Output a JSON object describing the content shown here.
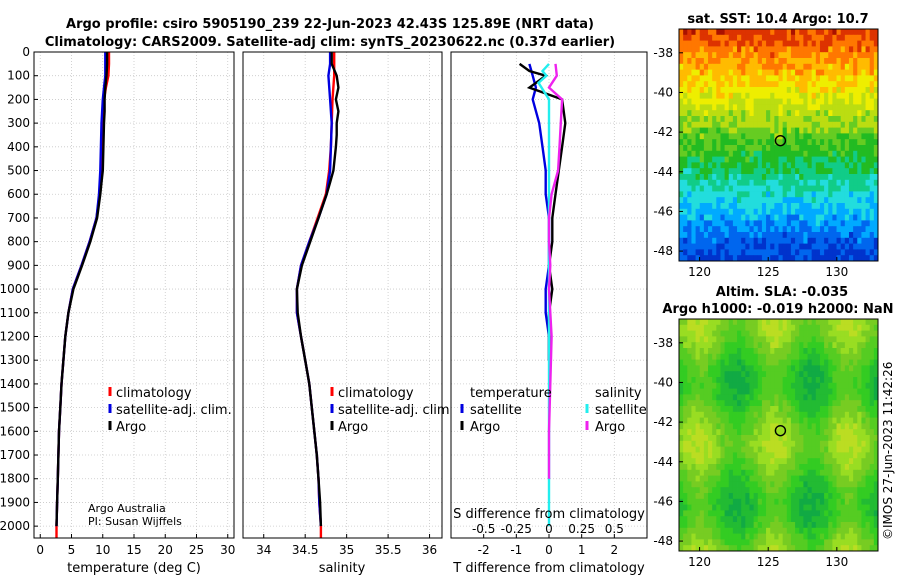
{
  "title": {
    "line1": "Argo profile: csiro 5905190_239 22-Jun-2023 42.43S 125.89E (NRT data)",
    "line2": "Climatology: CARS2009. Satellite-adj clim: synTS_20230622.nc (0.37d earlier)"
  },
  "colors": {
    "climatology": "#ff0000",
    "satellite": "#0000e0",
    "argo": "#000000",
    "sat_cyan": "#22eeee",
    "argo_magenta": "#ee22ee",
    "grid": "#c8c8c8"
  },
  "chart_data": [
    {
      "type": "line",
      "id": "temperature",
      "xlabel": "temperature (deg C)",
      "xlim": [
        -1,
        31
      ],
      "xticks": [
        0,
        5,
        10,
        15,
        20,
        25,
        30
      ],
      "ylim": [
        0,
        2050
      ],
      "yticks": [
        0,
        100,
        200,
        300,
        400,
        500,
        600,
        700,
        800,
        900,
        1000,
        1100,
        1200,
        1300,
        1400,
        1500,
        1600,
        1700,
        1800,
        1900,
        2000
      ],
      "legend": [
        "climatology",
        "satellite-adj. clim.",
        "Argo"
      ],
      "annotation": [
        "Argo Australia",
        "PI: Susan Wijffels"
      ],
      "series": [
        {
          "name": "climatology",
          "color": "#ff0000",
          "points": [
            [
              11.0,
              0
            ],
            [
              11.0,
              50
            ],
            [
              10.9,
              100
            ],
            [
              10.5,
              150
            ],
            [
              10.2,
              200
            ],
            [
              10.0,
              300
            ],
            [
              9.9,
              400
            ],
            [
              9.7,
              500
            ],
            [
              9.5,
              600
            ],
            [
              9.0,
              700
            ],
            [
              7.9,
              800
            ],
            [
              6.6,
              900
            ],
            [
              5.2,
              1000
            ],
            [
              4.5,
              1100
            ],
            [
              4.0,
              1200
            ],
            [
              3.7,
              1300
            ],
            [
              3.4,
              1400
            ],
            [
              3.2,
              1500
            ],
            [
              3.0,
              1600
            ],
            [
              2.9,
              1700
            ],
            [
              2.8,
              1800
            ],
            [
              2.7,
              1900
            ],
            [
              2.6,
              2000
            ],
            [
              2.6,
              2050
            ]
          ]
        },
        {
          "name": "satellite-adj. clim.",
          "color": "#0000e0",
          "points": [
            [
              10.4,
              0
            ],
            [
              10.4,
              50
            ],
            [
              10.4,
              100
            ],
            [
              10.2,
              150
            ],
            [
              10.0,
              200
            ],
            [
              9.8,
              300
            ],
            [
              9.7,
              400
            ],
            [
              9.6,
              500
            ],
            [
              9.4,
              600
            ],
            [
              9.0,
              700
            ],
            [
              7.9,
              800
            ],
            [
              6.6,
              900
            ],
            [
              5.2,
              1000
            ],
            [
              4.5,
              1100
            ],
            [
              4.0,
              1200
            ],
            [
              3.7,
              1300
            ],
            [
              3.4,
              1400
            ],
            [
              3.2,
              1500
            ],
            [
              3.0,
              1600
            ],
            [
              2.9,
              1700
            ],
            [
              2.8,
              1800
            ],
            [
              2.7,
              1900
            ],
            [
              2.6,
              2000
            ]
          ]
        },
        {
          "name": "Argo",
          "color": "#000000",
          "points": [
            [
              10.7,
              0
            ],
            [
              10.7,
              50
            ],
            [
              10.6,
              100
            ],
            [
              10.4,
              150
            ],
            [
              10.3,
              200
            ],
            [
              10.3,
              250
            ],
            [
              10.2,
              300
            ],
            [
              10.1,
              400
            ],
            [
              10.0,
              500
            ],
            [
              9.8,
              550
            ],
            [
              9.6,
              600
            ],
            [
              9.1,
              700
            ],
            [
              8.0,
              800
            ],
            [
              6.7,
              900
            ],
            [
              5.3,
              1000
            ],
            [
              4.5,
              1100
            ],
            [
              4.0,
              1200
            ],
            [
              3.7,
              1300
            ],
            [
              3.4,
              1400
            ],
            [
              3.2,
              1500
            ],
            [
              3.0,
              1600
            ],
            [
              2.9,
              1700
            ],
            [
              2.8,
              1800
            ],
            [
              2.7,
              1900
            ],
            [
              2.6,
              2000
            ]
          ]
        }
      ]
    },
    {
      "type": "line",
      "id": "salinity",
      "xlabel": "salinity",
      "xlim": [
        33.75,
        36.15
      ],
      "xticks": [
        34,
        34.5,
        35,
        35.5,
        36
      ],
      "ylim": [
        0,
        2050
      ],
      "legend": [
        "climatology",
        "satellite-adj. clim.",
        "Argo"
      ],
      "series": [
        {
          "name": "climatology",
          "color": "#ff0000",
          "points": [
            [
              34.85,
              0
            ],
            [
              34.85,
              100
            ],
            [
              34.83,
              200
            ],
            [
              34.82,
              300
            ],
            [
              34.81,
              400
            ],
            [
              34.79,
              500
            ],
            [
              34.75,
              600
            ],
            [
              34.65,
              700
            ],
            [
              34.55,
              800
            ],
            [
              34.45,
              900
            ],
            [
              34.4,
              1000
            ],
            [
              34.4,
              1100
            ],
            [
              34.45,
              1200
            ],
            [
              34.5,
              1300
            ],
            [
              34.55,
              1400
            ],
            [
              34.58,
              1500
            ],
            [
              34.61,
              1600
            ],
            [
              34.64,
              1700
            ],
            [
              34.66,
              1800
            ],
            [
              34.67,
              1900
            ],
            [
              34.69,
              2000
            ],
            [
              34.69,
              2050
            ]
          ]
        },
        {
          "name": "satellite-adj. clim.",
          "color": "#0000e0",
          "points": [
            [
              34.8,
              0
            ],
            [
              34.8,
              50
            ],
            [
              34.78,
              100
            ],
            [
              34.8,
              200
            ],
            [
              34.82,
              300
            ],
            [
              34.81,
              400
            ],
            [
              34.8,
              500
            ],
            [
              34.76,
              600
            ],
            [
              34.66,
              700
            ],
            [
              34.55,
              800
            ],
            [
              34.45,
              900
            ],
            [
              34.4,
              1000
            ],
            [
              34.4,
              1100
            ],
            [
              34.45,
              1200
            ],
            [
              34.5,
              1300
            ],
            [
              34.55,
              1400
            ],
            [
              34.58,
              1500
            ],
            [
              34.61,
              1600
            ],
            [
              34.64,
              1700
            ],
            [
              34.66,
              1800
            ],
            [
              34.67,
              1900
            ],
            [
              34.69,
              2000
            ]
          ]
        },
        {
          "name": "Argo",
          "color": "#000000",
          "points": [
            [
              34.82,
              0
            ],
            [
              34.82,
              50
            ],
            [
              34.88,
              100
            ],
            [
              34.9,
              150
            ],
            [
              34.87,
              200
            ],
            [
              34.9,
              250
            ],
            [
              34.88,
              300
            ],
            [
              34.88,
              350
            ],
            [
              34.87,
              400
            ],
            [
              34.84,
              500
            ],
            [
              34.8,
              550
            ],
            [
              34.76,
              600
            ],
            [
              34.66,
              700
            ],
            [
              34.56,
              800
            ],
            [
              34.46,
              900
            ],
            [
              34.4,
              1000
            ],
            [
              34.41,
              1100
            ],
            [
              34.45,
              1200
            ],
            [
              34.5,
              1300
            ],
            [
              34.55,
              1400
            ],
            [
              34.58,
              1500
            ],
            [
              34.61,
              1600
            ],
            [
              34.64,
              1700
            ],
            [
              34.66,
              1800
            ],
            [
              34.68,
              1900
            ],
            [
              34.69,
              2000
            ]
          ]
        }
      ]
    },
    {
      "type": "line",
      "id": "difference",
      "xlabel": "T difference from climatology",
      "xlabel2": "S difference from climatology",
      "xlim": [
        -3,
        3
      ],
      "xticks": [
        -2,
        -1,
        0,
        1,
        2
      ],
      "xticks_labels": [
        "-2",
        "-1",
        "0",
        "1",
        "2"
      ],
      "s_ticks": [
        -0.5,
        -0.25,
        0,
        0.25,
        0.5
      ],
      "s_ticks_labels": [
        "-0.5",
        "-0.25",
        "0",
        "0.25",
        "0.5"
      ],
      "ylim": [
        0,
        2050
      ],
      "legend_titles": [
        "temperature",
        "salinity"
      ],
      "legend": [
        "satellite",
        "Argo",
        "satellite",
        "Argo"
      ],
      "series": [
        {
          "name": "T satellite",
          "color": "#0000e0",
          "points": [
            [
              -0.6,
              50
            ],
            [
              -0.5,
              100
            ],
            [
              -0.4,
              150
            ],
            [
              -0.5,
              200
            ],
            [
              -0.3,
              300
            ],
            [
              -0.2,
              400
            ],
            [
              -0.1,
              500
            ],
            [
              -0.1,
              600
            ],
            [
              0.0,
              700
            ],
            [
              0.0,
              900
            ],
            [
              -0.1,
              1000
            ],
            [
              -0.1,
              1100
            ],
            [
              0.0,
              1200
            ],
            [
              0.0,
              1300
            ]
          ]
        },
        {
          "name": "T Argo",
          "color": "#000000",
          "points": [
            [
              -0.9,
              50
            ],
            [
              -0.6,
              80
            ],
            [
              -0.1,
              100
            ],
            [
              -0.6,
              150
            ],
            [
              0.4,
              200
            ],
            [
              0.5,
              300
            ],
            [
              0.4,
              400
            ],
            [
              0.3,
              500
            ],
            [
              0.2,
              600
            ],
            [
              0.1,
              700
            ],
            [
              0.1,
              800
            ],
            [
              0.0,
              900
            ],
            [
              0.1,
              1000
            ],
            [
              0.0,
              1100
            ],
            [
              0.0,
              1200
            ],
            [
              0.0,
              1300
            ]
          ]
        },
        {
          "name": "S satellite",
          "color": "#22eeee",
          "points": [
            [
              0.0,
              50
            ],
            [
              -0.05,
              80
            ],
            [
              -0.02,
              100
            ],
            [
              -0.08,
              130
            ],
            [
              0.0,
              200
            ],
            [
              0.0,
              400
            ],
            [
              0.0,
              600
            ],
            [
              0.0,
              1000
            ],
            [
              0.0,
              1400
            ],
            [
              0.0,
              1700
            ],
            [
              0.0,
              2000
            ]
          ]
        },
        {
          "name": "S Argo",
          "color": "#ee22ee",
          "points": [
            [
              0.05,
              50
            ],
            [
              0.06,
              100
            ],
            [
              0.0,
              150
            ],
            [
              0.1,
              200
            ],
            [
              0.09,
              300
            ],
            [
              0.08,
              400
            ],
            [
              0.07,
              500
            ],
            [
              0.02,
              600
            ],
            [
              0.0,
              700
            ],
            [
              0.0,
              800
            ],
            [
              0.01,
              900
            ],
            [
              0.0,
              1000
            ],
            [
              0.02,
              1200
            ],
            [
              0.01,
              1400
            ],
            [
              0.0,
              1600
            ],
            [
              0.0,
              1800
            ]
          ]
        }
      ]
    },
    {
      "type": "heatmap",
      "id": "sst_map",
      "title": "sat. SST: 10.4 Argo: 10.7",
      "xticks": [
        120,
        125,
        130
      ],
      "yticks": [
        -38,
        -40,
        -42,
        -44,
        -46,
        -48
      ],
      "xlim": [
        118.5,
        133
      ],
      "ylim": [
        -48.5,
        -36.8
      ],
      "marker": [
        125.89,
        -42.43
      ]
    },
    {
      "type": "heatmap",
      "id": "sla_map",
      "title": "Altim. SLA: -0.035",
      "subtitle": "Argo h1000: -0.019 h2000: NaN",
      "xticks": [
        120,
        125,
        130
      ],
      "yticks": [
        -38,
        -40,
        -42,
        -44,
        -46,
        -48
      ],
      "xlim": [
        118.5,
        133
      ],
      "ylim": [
        -48.5,
        -36.8
      ],
      "marker": [
        125.89,
        -42.43
      ]
    }
  ],
  "credit": "©IMOS 27-Jun-2023 11:42:26"
}
